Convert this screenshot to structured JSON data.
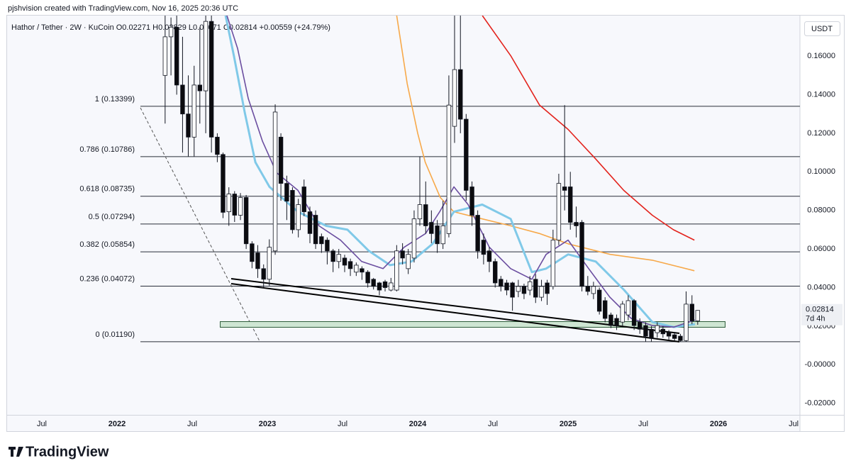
{
  "header": {
    "credit": "pjshvision created with TradingView.com, Nov 16, 2025 20:36 UTC",
    "symbol": "Hathor / Tether · 2W · KuCoin",
    "open": "O0.02271",
    "high": "H0.02829",
    "low": "L0.02071",
    "close": "C0.02814",
    "change": "+0.00559 (+24.79%)"
  },
  "footer": {
    "brand": "TradingView"
  },
  "chart_data": {
    "type": "candlestick",
    "x": [
      2022.32,
      2022.359,
      2022.397,
      2022.436,
      2022.474,
      2022.513,
      2022.551,
      2022.59,
      2022.628,
      2022.667,
      2022.705,
      2022.744,
      2022.782,
      2022.821,
      2022.859,
      2022.898,
      2022.936,
      2022.975,
      2023.013,
      2023.052,
      2023.09,
      2023.129,
      2023.167,
      2023.206,
      2023.244,
      2023.283,
      2023.321,
      2023.36,
      2023.398,
      2023.437,
      2023.475,
      2023.514,
      2023.552,
      2023.591,
      2023.629,
      2023.668,
      2023.706,
      2023.745,
      2023.783,
      2023.822,
      2023.86,
      2023.899,
      2023.937,
      2023.976,
      2024.014,
      2024.053,
      2024.091,
      2024.13,
      2024.168,
      2024.207,
      2024.245,
      2024.284,
      2024.322,
      2024.361,
      2024.399,
      2024.438,
      2024.476,
      2024.515,
      2024.553,
      2024.592,
      2024.63,
      2024.669,
      2024.707,
      2024.746,
      2024.784,
      2024.823,
      2024.861,
      2024.9,
      2024.938,
      2024.977,
      2025.015,
      2025.054,
      2025.092,
      2025.131,
      2025.169,
      2025.208,
      2025.246,
      2025.285,
      2025.323,
      2025.362,
      2025.4,
      2025.439,
      2025.477,
      2025.516,
      2025.554,
      2025.593,
      2025.631,
      2025.67,
      2025.708,
      2025.747,
      2025.785,
      2025.824,
      2025.862
    ],
    "open": [
      0.15,
      0.17,
      0.175,
      0.145,
      0.13,
      0.118,
      0.145,
      0.142,
      0.178,
      0.118,
      0.109,
      0.0793,
      0.0885,
      0.0775,
      0.0867,
      0.0627,
      0.058,
      0.0498,
      0.0443,
      0.059,
      0.118,
      0.094,
      0.0904,
      0.07,
      0.0922,
      0.0793,
      0.0775,
      0.0664,
      0.0646,
      0.059,
      0.0535,
      0.0553,
      0.0535,
      0.048,
      0.0498,
      0.048,
      0.0443,
      0.0424,
      0.043,
      0.0387,
      0.0387,
      0.059,
      0.0498,
      0.0553,
      0.0756,
      0.083,
      0.0738,
      0.072,
      0.0627,
      0.068,
      0.1236,
      0.153,
      0.1273,
      0.0922,
      0.0775,
      0.0646,
      0.059,
      0.0535,
      0.0443,
      0.0424,
      0.0424,
      0.038,
      0.0406,
      0.0387,
      0.0443,
      0.035,
      0.0424,
      0.0406,
      0.0646,
      0.0922,
      0.0922,
      0.0738,
      0.0738,
      0.0406,
      0.0369,
      0.0387,
      0.0332,
      0.0258,
      0.024,
      0.0221,
      0.0258,
      0.0332,
      0.0221,
      0.0203,
      0.0184,
      0.0166,
      0.0184,
      0.0166,
      0.0155,
      0.0148,
      0.0125,
      0.0314,
      0.02271
    ],
    "high": [
      0.19,
      0.18,
      0.182,
      0.17,
      0.15,
      0.155,
      0.175,
      0.182,
      0.182,
      0.12,
      0.11,
      0.092,
      0.09,
      0.089,
      0.088,
      0.064,
      0.062,
      0.052,
      0.065,
      0.135,
      0.12,
      0.098,
      0.092,
      0.086,
      0.096,
      0.082,
      0.08,
      0.068,
      0.066,
      0.06,
      0.06,
      0.057,
      0.055,
      0.053,
      0.051,
      0.049,
      0.045,
      0.043,
      0.044,
      0.045,
      0.062,
      0.063,
      0.06,
      0.08,
      0.108,
      0.095,
      0.08,
      0.075,
      0.085,
      0.15,
      0.182,
      0.182,
      0.13,
      0.095,
      0.08,
      0.068,
      0.061,
      0.055,
      0.046,
      0.044,
      0.043,
      0.044,
      0.042,
      0.046,
      0.047,
      0.044,
      0.044,
      0.07,
      0.099,
      0.1346,
      0.1,
      0.082,
      0.075,
      0.046,
      0.043,
      0.04,
      0.035,
      0.027,
      0.026,
      0.033,
      0.036,
      0.034,
      0.024,
      0.022,
      0.02,
      0.022,
      0.02,
      0.018,
      0.017,
      0.016,
      0.038,
      0.036,
      0.02829
    ],
    "low": [
      0.125,
      0.15,
      0.14,
      0.11,
      0.108,
      0.108,
      0.125,
      0.12,
      0.11,
      0.105,
      0.076,
      0.072,
      0.074,
      0.075,
      0.06,
      0.05,
      0.045,
      0.04,
      0.041,
      0.057,
      0.085,
      0.075,
      0.068,
      0.066,
      0.077,
      0.063,
      0.06,
      0.058,
      0.052,
      0.048,
      0.05,
      0.048,
      0.046,
      0.046,
      0.044,
      0.04,
      0.039,
      0.036,
      0.038,
      0.038,
      0.038,
      0.052,
      0.047,
      0.053,
      0.072,
      0.068,
      0.063,
      0.058,
      0.06,
      0.066,
      0.115,
      0.12,
      0.085,
      0.072,
      0.055,
      0.052,
      0.048,
      0.04,
      0.038,
      0.036,
      0.028,
      0.035,
      0.034,
      0.036,
      0.032,
      0.033,
      0.031,
      0.039,
      0.062,
      0.08,
      0.07,
      0.066,
      0.038,
      0.036,
      0.034,
      0.026,
      0.022,
      0.019,
      0.018,
      0.02,
      0.023,
      0.018,
      0.016,
      0.012,
      0.012,
      0.014,
      0.014,
      0.013,
      0.0125,
      0.0119,
      0.0119,
      0.021,
      0.02071
    ],
    "close": [
      0.17,
      0.175,
      0.145,
      0.13,
      0.118,
      0.145,
      0.142,
      0.178,
      0.118,
      0.109,
      0.079,
      0.0885,
      0.0775,
      0.0867,
      0.0627,
      0.0535,
      0.0498,
      0.0443,
      0.0609,
      0.131,
      0.094,
      0.0848,
      0.07,
      0.083,
      0.0793,
      0.068,
      0.0627,
      0.0627,
      0.059,
      0.0535,
      0.0572,
      0.0516,
      0.0498,
      0.0516,
      0.048,
      0.0424,
      0.0406,
      0.0387,
      0.04,
      0.0424,
      0.059,
      0.0553,
      0.0572,
      0.0756,
      0.083,
      0.072,
      0.068,
      0.0627,
      0.072,
      0.1346,
      0.153,
      0.1273,
      0.0904,
      0.0775,
      0.059,
      0.0572,
      0.0535,
      0.0424,
      0.0406,
      0.0387,
      0.035,
      0.0406,
      0.0369,
      0.043,
      0.035,
      0.0406,
      0.0369,
      0.0646,
      0.094,
      0.0904,
      0.0738,
      0.072,
      0.0406,
      0.038,
      0.0406,
      0.0277,
      0.024,
      0.0203,
      0.0203,
      0.0314,
      0.0332,
      0.0203,
      0.0184,
      0.0148,
      0.0136,
      0.0203,
      0.016,
      0.0148,
      0.0136,
      0.0125,
      0.0314,
      0.02271,
      0.02814
    ],
    "up_color": "#ffffff",
    "down_color": "#0b0b0f",
    "outline_color": "#131722",
    "moving_averages": [
      {
        "color": "#e3231d",
        "x": [
          2024.43,
          2024.62,
          2024.81,
          2025.0,
          2025.18,
          2025.37,
          2025.56,
          2025.7,
          2025.84
        ],
        "values": [
          0.181,
          0.16,
          0.1346,
          0.122,
          0.107,
          0.0904,
          0.0775,
          0.07,
          0.0646
        ]
      },
      {
        "color": "#f7a94a",
        "x": [
          2023.86,
          2023.93,
          2024.0,
          2024.05,
          2024.15,
          2024.24,
          2024.43,
          2024.62,
          2024.81,
          2025.0,
          2025.28,
          2025.56,
          2025.84
        ],
        "values": [
          0.181,
          0.1457,
          0.12,
          0.105,
          0.0867,
          0.0793,
          0.0756,
          0.072,
          0.068,
          0.0627,
          0.0572,
          0.0542,
          0.0487
        ]
      },
      {
        "color": "#80c9e8",
        "x": [
          2022.722,
          2022.778,
          2022.849,
          2022.92,
          2023.014,
          2023.203,
          2023.392,
          2023.533,
          2023.675,
          2023.816,
          2023.958,
          2024.099,
          2024.241,
          2024.429,
          2024.618,
          2024.759,
          2024.854,
          2025.0,
          2025.184,
          2025.373,
          2025.561,
          2025.703,
          2025.844
        ],
        "values": [
          0.181,
          0.16,
          0.131,
          0.105,
          0.0922,
          0.0793,
          0.072,
          0.07,
          0.059,
          0.0516,
          0.0535,
          0.0627,
          0.0793,
          0.083,
          0.0756,
          0.048,
          0.0498,
          0.0572,
          0.0535,
          0.0387,
          0.0221,
          0.0195,
          0.021
        ]
      },
      {
        "color": "#6b4ea0",
        "x": [
          2022.731,
          2022.802,
          2022.873,
          2022.967,
          2023.061,
          2023.203,
          2023.344,
          2023.486,
          2023.627,
          2023.769,
          2023.91,
          2024.052,
          2024.146,
          2024.241,
          2024.335,
          2024.476,
          2024.618,
          2024.759,
          2024.854,
          2025.0,
          2025.137,
          2025.278,
          2025.42,
          2025.561,
          2025.703,
          2025.844
        ],
        "values": [
          0.181,
          0.164,
          0.138,
          0.116,
          0.0996,
          0.0904,
          0.072,
          0.0646,
          0.0535,
          0.0498,
          0.0609,
          0.068,
          0.0793,
          0.0922,
          0.083,
          0.0609,
          0.0498,
          0.0443,
          0.0572,
          0.0646,
          0.0498,
          0.035,
          0.024,
          0.0203,
          0.0195,
          0.0232
        ]
      }
    ],
    "fib_levels": [
      {
        "value": 0.13399,
        "label": "1 (0.13399)"
      },
      {
        "value": 0.10786,
        "label": "0.786 (0.10786)"
      },
      {
        "value": 0.08735,
        "label": "0.618 (0.08735)"
      },
      {
        "value": 0.07294,
        "label": "0.5 (0.07294)"
      },
      {
        "value": 0.05854,
        "label": "0.382 (0.05854)"
      },
      {
        "value": 0.04072,
        "label": "0.236 (0.04072)"
      },
      {
        "value": 0.0119,
        "label": "0 (0.01190)"
      }
    ],
    "xlim": [
      2021.269,
      2026.542
    ],
    "ylim": [
      -0.026,
      0.181
    ],
    "xticks": [
      {
        "value": 2021.5,
        "label": "Jul"
      },
      2022,
      {
        "value": 2022.5,
        "label": "Jul"
      },
      2023,
      {
        "value": 2023.5,
        "label": "Jul"
      },
      2024,
      {
        "value": 2024.5,
        "label": "Jul"
      },
      2025,
      {
        "value": 2025.5,
        "label": "Jul"
      },
      2026,
      {
        "value": 2026.5,
        "label": "Jul"
      }
    ],
    "yticks": [
      {
        "value": 0.16,
        "label": "0.16000"
      },
      {
        "value": 0.14,
        "label": "0.14000"
      },
      {
        "value": 0.12,
        "label": "0.12000"
      },
      {
        "value": 0.1,
        "label": "0.10000"
      },
      {
        "value": 0.08,
        "label": "0.08000"
      },
      {
        "value": 0.06,
        "label": "0.06000"
      },
      {
        "value": 0.04,
        "label": "0.04000"
      },
      {
        "value": 0.02,
        "label": "0.02000"
      },
      {
        "value": 0,
        "label": "-0.00000"
      },
      {
        "value": -0.02,
        "label": "-0.02000"
      }
    ],
    "price_unit": "USDT",
    "last_price": {
      "value": 0.02814,
      "label": "0.02814"
    },
    "countdown": "7d 4h"
  }
}
